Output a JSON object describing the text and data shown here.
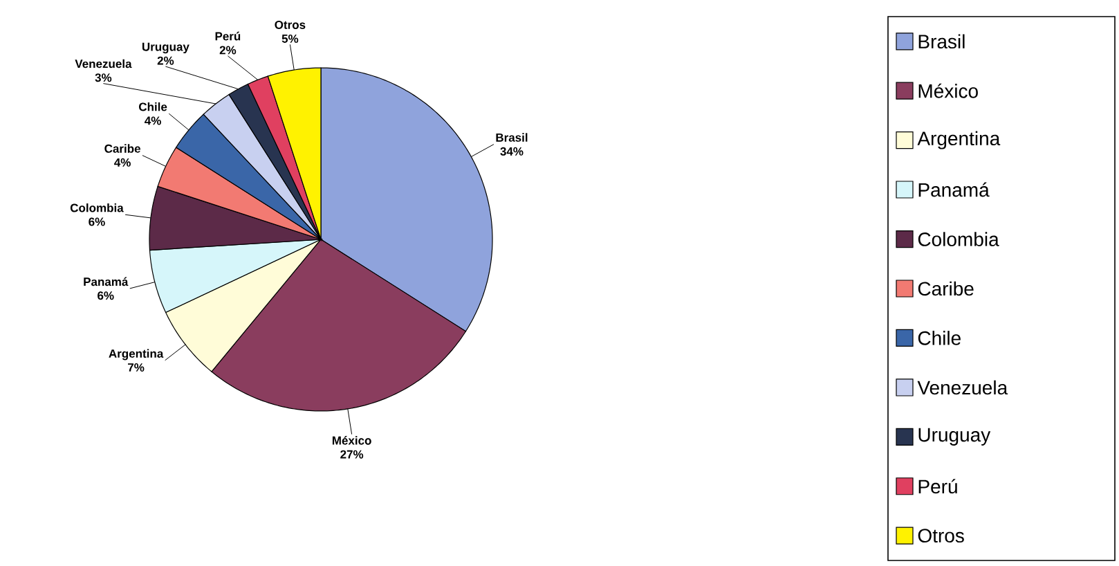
{
  "chart_data": {
    "type": "pie",
    "categories": [
      "Brasil",
      "México",
      "Argentina",
      "Panamá",
      "Colombia",
      "Caribe",
      "Chile",
      "Venezuela",
      "Uruguay",
      "Perú",
      "Otros"
    ],
    "values": [
      34,
      27,
      7,
      6,
      6,
      4,
      4,
      3,
      2,
      2,
      5
    ],
    "value_labels": [
      "34%",
      "27%",
      "7%",
      "6%",
      "6%",
      "4%",
      "4%",
      "3%",
      "2%",
      "2%",
      "5%"
    ],
    "colors": [
      "#8fa3dc",
      "#8a3d5e",
      "#fffcd8",
      "#d6f6fa",
      "#5c2a48",
      "#f27a72",
      "#3a66a8",
      "#c8d0f0",
      "#283450",
      "#e04060",
      "#fff200"
    ],
    "legend": "right"
  }
}
